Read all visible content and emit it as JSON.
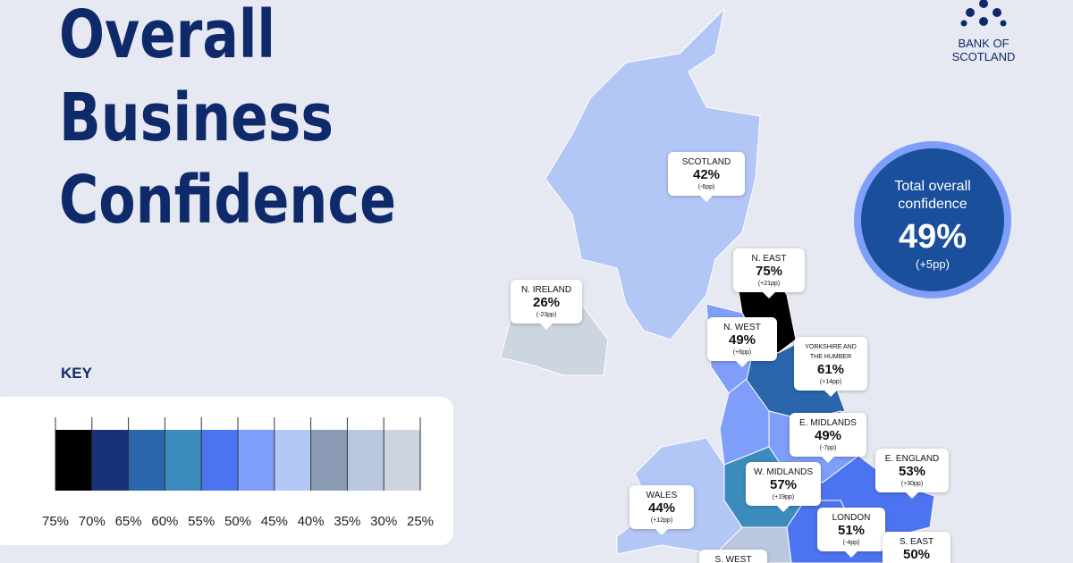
{
  "title": [
    "Overall",
    "Business",
    "Confidence"
  ],
  "logo": {
    "line1": "BANK OF",
    "line2": "SCOTLAND"
  },
  "total": {
    "label": "Total overall confidence",
    "value": "49%",
    "change": "(+5pp)"
  },
  "key": {
    "title": "KEY",
    "labels": [
      "75%",
      "70%",
      "65%",
      "60%",
      "55%",
      "50%",
      "45%",
      "40%",
      "35%",
      "30%",
      "25%"
    ]
  },
  "regions": [
    {
      "name": "SCOTLAND",
      "value": "42%",
      "change": "(-6pp)"
    },
    {
      "name": "N. EAST",
      "value": "75%",
      "change": "(+21pp)"
    },
    {
      "name": "N. IRELAND",
      "value": "26%",
      "change": "(-23pp)"
    },
    {
      "name": "N. WEST",
      "value": "49%",
      "change": "(+6pp)"
    },
    {
      "name": "YORKSHIRE AND THE HUMBER",
      "value": "61%",
      "change": "(+14pp)"
    },
    {
      "name": "E. MIDLANDS",
      "value": "49%",
      "change": "(-7pp)"
    },
    {
      "name": "W. MIDLANDS",
      "value": "57%",
      "change": "(+19pp)"
    },
    {
      "name": "E. ENGLAND",
      "value": "53%",
      "change": "(+30pp)"
    },
    {
      "name": "WALES",
      "value": "44%",
      "change": "(+12pp)"
    },
    {
      "name": "LONDON",
      "value": "51%",
      "change": "(-4pp)"
    },
    {
      "name": "S. EAST",
      "value": "50%"
    },
    {
      "name": "S. WEST"
    }
  ]
}
